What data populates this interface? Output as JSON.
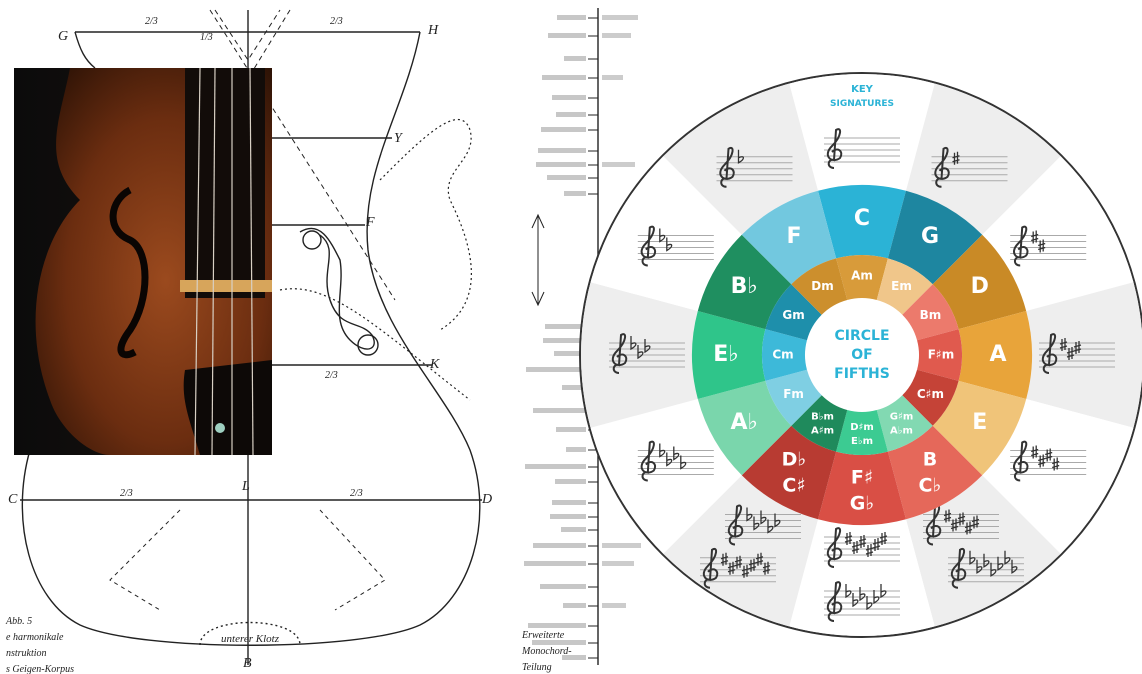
{
  "drawing": {
    "points": [
      "G",
      "H",
      "Y",
      "F",
      "K",
      "C",
      "D",
      "L",
      "B"
    ],
    "fractions": [
      "2/3",
      "2/3",
      "1/3",
      "2/3",
      "2/3",
      "2/3"
    ],
    "bottom_label": "unterer Klotz",
    "caption": [
      "Abb. 5",
      "e harmonikale",
      "nstruktion",
      "s Geigen-Korpus"
    ]
  },
  "monochord": {
    "caption": [
      "Erweiterte",
      "Monochord-",
      "Teilung"
    ]
  },
  "circle": {
    "heading": [
      "KEY",
      "SIGNATURES"
    ],
    "center": [
      "CIRCLE",
      "OF",
      "FIFTHS"
    ],
    "majors": [
      [
        "C"
      ],
      [
        "G"
      ],
      [
        "D"
      ],
      [
        "A"
      ],
      [
        "E"
      ],
      [
        "B",
        "C♭"
      ],
      [
        "F♯",
        "G♭"
      ],
      [
        "D♭",
        "C♯"
      ],
      [
        "A♭"
      ],
      [
        "E♭"
      ],
      [
        "B♭"
      ],
      [
        "F"
      ]
    ],
    "minors": [
      [
        "Am"
      ],
      [
        "Em"
      ],
      [
        "Bm"
      ],
      [
        "F♯m"
      ],
      [
        "C♯m"
      ],
      [
        "G♯m",
        "A♭m"
      ],
      [
        "D♯m",
        "E♭m"
      ],
      [
        "B♭m",
        "A♯m"
      ],
      [
        "Fm"
      ],
      [
        "Cm"
      ],
      [
        "Gm"
      ],
      [
        "Dm"
      ]
    ]
  }
}
